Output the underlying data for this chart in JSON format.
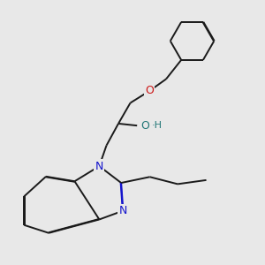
{
  "bg_color": "#e8e8e8",
  "bond_color": "#1a1a1a",
  "N_color": "#1414cc",
  "O_color": "#cc1414",
  "OH_color": "#227777",
  "line_width": 1.4,
  "dbo": 0.008,
  "figsize": [
    3.0,
    3.0
  ],
  "dpi": 100,
  "xlim": [
    -2.5,
    3.5
  ],
  "ylim": [
    -3.8,
    2.8
  ]
}
